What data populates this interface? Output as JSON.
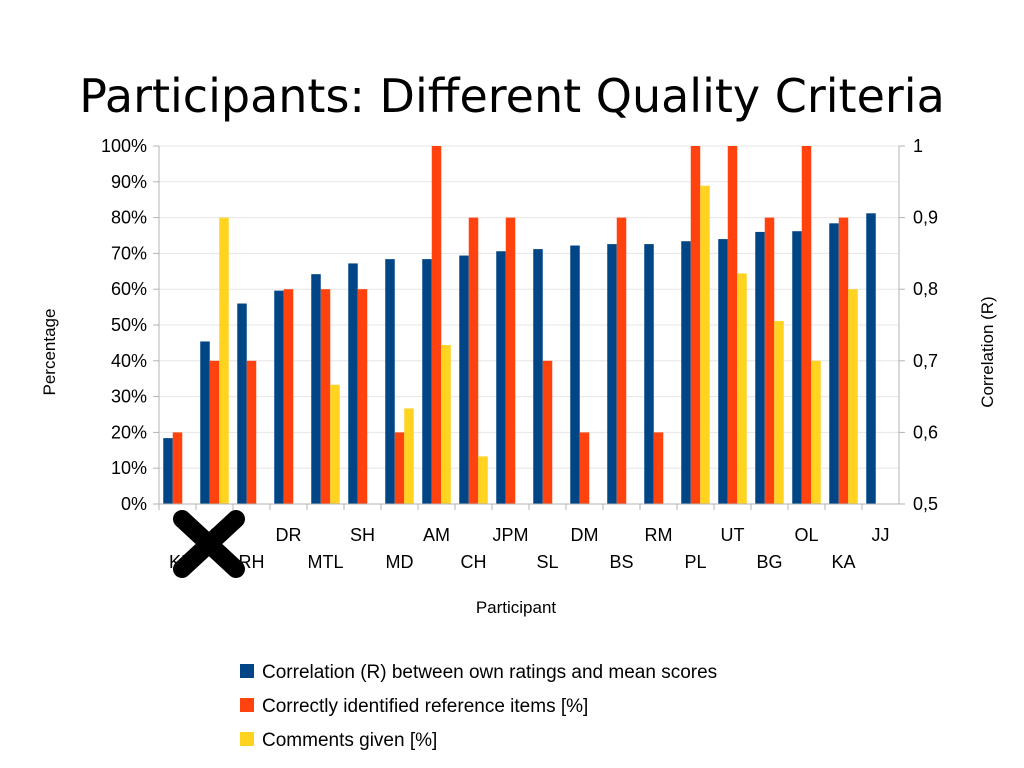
{
  "slide": {
    "title": "Participants: Different Quality Criteria"
  },
  "chart_data": {
    "type": "bar",
    "xlabel": "Participant",
    "ylabel": "Percentage",
    "y2label": "Correlation (R)",
    "ylim": [
      0,
      100
    ],
    "y2lim": [
      0.5,
      1
    ],
    "yticks": [
      "0%",
      "10%",
      "20%",
      "30%",
      "40%",
      "50%",
      "60%",
      "70%",
      "80%",
      "90%",
      "100%"
    ],
    "y2ticks": [
      "0,5",
      "0,6",
      "0,7",
      "0,8",
      "0,9",
      "1"
    ],
    "categories": [
      "KI",
      "?",
      "RH",
      "DR",
      "MTL",
      "SH",
      "MD",
      "AM",
      "CH",
      "JPM",
      "SL",
      "DM",
      "BS",
      "RM",
      "PL",
      "UT",
      "BG",
      "OL",
      "KA",
      "JJ"
    ],
    "category_label_rows": [
      "bottom",
      "top",
      "bottom",
      "top",
      "bottom",
      "top",
      "bottom",
      "top",
      "bottom",
      "top",
      "bottom",
      "top",
      "bottom",
      "top",
      "bottom",
      "top",
      "bottom",
      "top",
      "bottom",
      "top"
    ],
    "grid": true,
    "legend_position": "bottom",
    "series": [
      {
        "name": "Correlation (R) between own ratings and mean scores",
        "axis": "right",
        "color": "#004586",
        "values": [
          0.592,
          0.727,
          0.78,
          0.798,
          0.821,
          0.836,
          0.842,
          0.842,
          0.847,
          0.853,
          0.856,
          0.861,
          0.863,
          0.863,
          0.867,
          0.87,
          0.88,
          0.881,
          0.892,
          0.906
        ]
      },
      {
        "name": "Correctly identified reference items [%]",
        "axis": "left",
        "color": "#ff420e",
        "values": [
          20,
          40,
          40,
          60,
          60,
          60,
          20,
          100,
          80,
          80,
          40,
          20,
          80,
          20,
          100,
          100,
          80,
          100,
          80,
          null
        ]
      },
      {
        "name": "Comments given [%]",
        "axis": "left",
        "color": "#ffd320",
        "values": [
          null,
          80,
          null,
          null,
          33.3,
          null,
          26.7,
          44.4,
          13.3,
          null,
          null,
          null,
          null,
          null,
          88.9,
          64.4,
          51.1,
          40,
          60,
          null
        ]
      }
    ],
    "annotation": {
      "type": "cross-mark",
      "color": "#000000",
      "over_categories": [
        "KI",
        "?",
        "RH"
      ]
    }
  }
}
